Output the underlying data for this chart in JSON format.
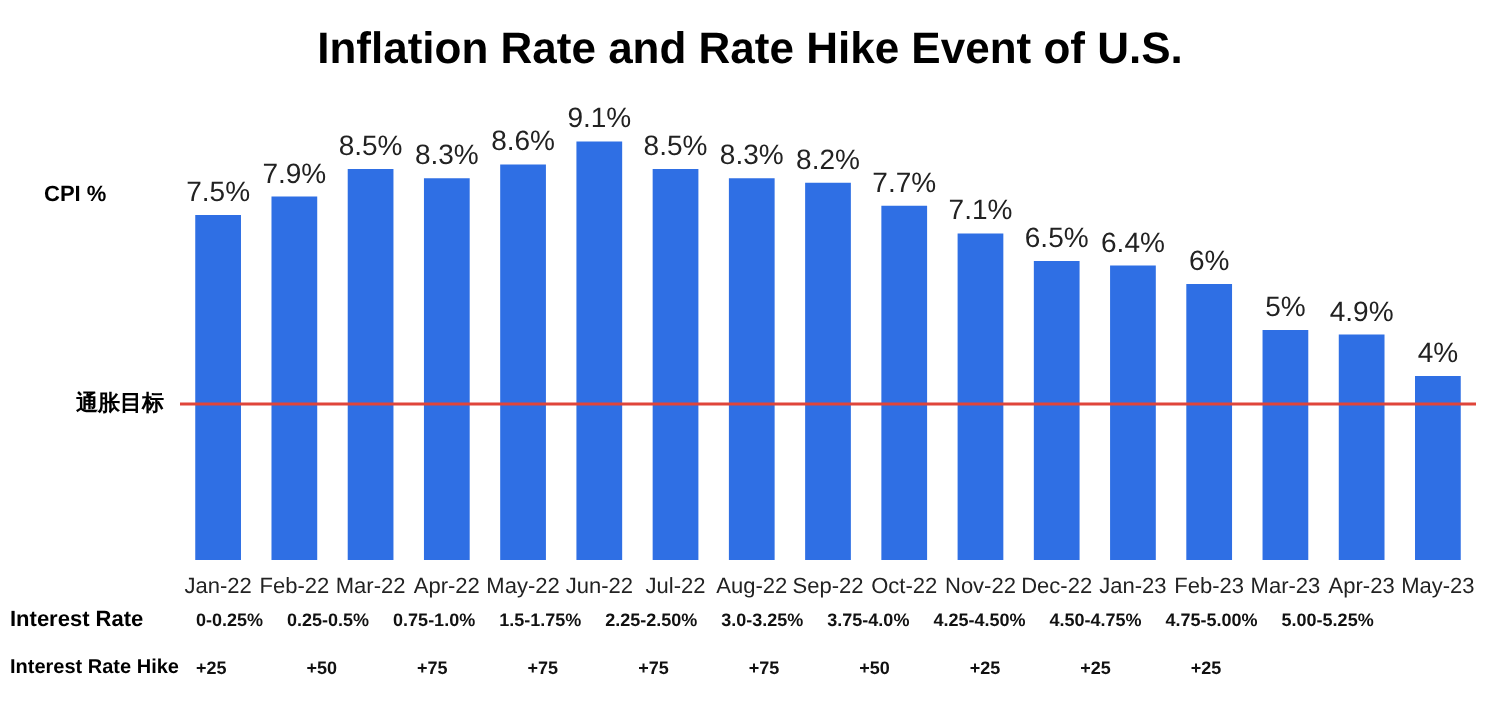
{
  "chart_data": {
    "type": "bar",
    "title": "Inflation Rate and Rate Hike Event of U.S.",
    "ylabel": "CPI %",
    "categories": [
      "Jan-22",
      "Feb-22",
      "Mar-22",
      "Apr-22",
      "May-22",
      "Jun-22",
      "Jul-22",
      "Aug-22",
      "Sep-22",
      "Oct-22",
      "Nov-22",
      "Dec-22",
      "Jan-23",
      "Feb-23",
      "Mar-23",
      "Apr-23",
      "May-23"
    ],
    "values": [
      7.5,
      7.9,
      8.5,
      8.3,
      8.6,
      9.1,
      8.5,
      8.3,
      8.2,
      7.7,
      7.1,
      6.5,
      6.4,
      6.0,
      5.0,
      4.9,
      4.0
    ],
    "value_labels": [
      "7.5%",
      "7.9%",
      "8.5%",
      "8.3%",
      "8.6%",
      "9.1%",
      "8.5%",
      "8.3%",
      "8.2%",
      "7.7%",
      "7.1%",
      "6.5%",
      "6.4%",
      "6%",
      "5%",
      "4.9%",
      "4%"
    ],
    "color": "#2f6fe4",
    "tick_labels": "x",
    "ref_lines": [
      {
        "axis": "y",
        "value": 3.4,
        "label": "通胀目标",
        "color": "#e0453a"
      }
    ],
    "annotations": [
      "Interest Rate",
      "0-0.25%",
      "0.25-0.5%",
      "0.75-1.0%",
      "1.5-1.75%",
      "2.25-2.50%",
      "3.0-3.25%",
      "3.75-4.0%",
      "4.25-4.50%",
      "4.50-4.75%",
      "4.75-5.00%",
      "5.00-5.25%",
      "Interest Rate Hike",
      "+25",
      "+50",
      "+75",
      "+75",
      "+75",
      "+75",
      "+50",
      "+25",
      "+25",
      "+25"
    ]
  }
}
